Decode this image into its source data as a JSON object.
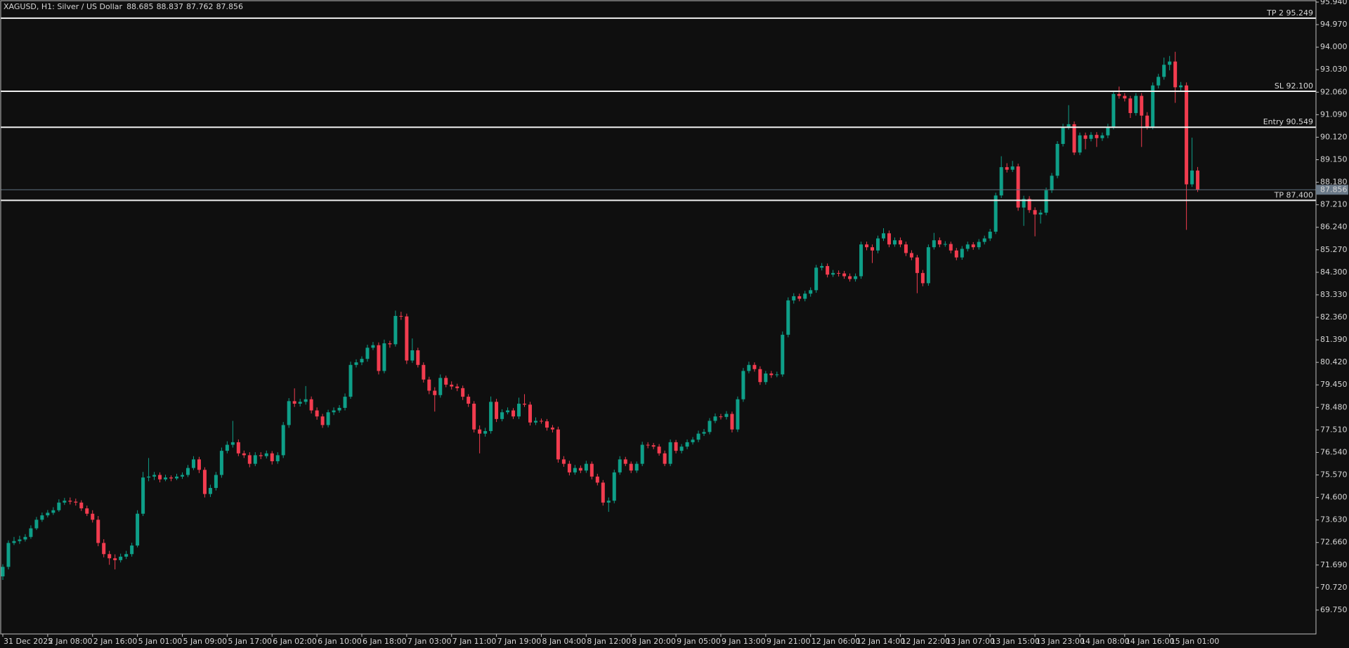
{
  "chart_data": {
    "type": "candlestick",
    "title": "XAGUSD, H1:  Silver / US Dollar",
    "up_color": "#0e9f88",
    "down_color": "#f23c4f",
    "grid": false,
    "ylim": [
      68.72,
      95.94
    ],
    "yticks": [
      {
        "value": 69.75,
        "label": "69.750"
      },
      {
        "value": 70.72,
        "label": "70.720"
      },
      {
        "value": 71.69,
        "label": "71.690"
      },
      {
        "value": 72.66,
        "label": "72.660"
      },
      {
        "value": 73.63,
        "label": "73.630"
      },
      {
        "value": 74.6,
        "label": "74.600"
      },
      {
        "value": 75.57,
        "label": "75.570"
      },
      {
        "value": 76.54,
        "label": "76.540"
      },
      {
        "value": 77.51,
        "label": "77.510"
      },
      {
        "value": 78.48,
        "label": "78.480"
      },
      {
        "value": 79.45,
        "label": "79.450"
      },
      {
        "value": 80.42,
        "label": "80.420"
      },
      {
        "value": 81.39,
        "label": "81.390"
      },
      {
        "value": 82.36,
        "label": "82.360"
      },
      {
        "value": 83.33,
        "label": "83.330"
      },
      {
        "value": 84.3,
        "label": "84.300"
      },
      {
        "value": 85.27,
        "label": "85.270"
      },
      {
        "value": 86.24,
        "label": "86.240"
      },
      {
        "value": 87.21,
        "label": "87.210"
      },
      {
        "value": 88.18,
        "label": "88.180"
      },
      {
        "value": 89.15,
        "label": "89.150"
      },
      {
        "value": 90.12,
        "label": "90.120"
      },
      {
        "value": 91.09,
        "label": "91.090"
      },
      {
        "value": 92.06,
        "label": "92.060"
      },
      {
        "value": 93.03,
        "label": "93.030"
      },
      {
        "value": 94,
        "label": "94.000"
      },
      {
        "value": 94.97,
        "label": "94.970"
      },
      {
        "value": 95.94,
        "label": "95.940"
      }
    ],
    "levels": [
      {
        "value": 95.249,
        "label": "TP 2 95.249"
      },
      {
        "value": 92.1,
        "label": "SL 92.100"
      },
      {
        "value": 90.549,
        "label": "Entry 90.549"
      },
      {
        "value": 87.4,
        "label": "TP 87.400"
      }
    ],
    "categories": [
      "31 Dec 2025",
      null,
      null,
      null,
      null,
      null,
      null,
      null,
      "2 Jan 08:00",
      null,
      null,
      null,
      null,
      null,
      null,
      null,
      "2 Jan 16:00",
      null,
      null,
      null,
      null,
      null,
      null,
      null,
      "5 Jan 01:00",
      null,
      null,
      null,
      null,
      null,
      null,
      null,
      "5 Jan 09:00",
      null,
      null,
      null,
      null,
      null,
      null,
      null,
      "5 Jan 17:00",
      null,
      null,
      null,
      null,
      null,
      null,
      null,
      "6 Jan 02:00",
      null,
      null,
      null,
      null,
      null,
      null,
      null,
      "6 Jan 10:00",
      null,
      null,
      null,
      null,
      null,
      null,
      null,
      "6 Jan 18:00",
      null,
      null,
      null,
      null,
      null,
      null,
      null,
      "7 Jan 03:00",
      null,
      null,
      null,
      null,
      null,
      null,
      null,
      "7 Jan 11:00",
      null,
      null,
      null,
      null,
      null,
      null,
      null,
      "7 Jan 19:00",
      null,
      null,
      null,
      null,
      null,
      null,
      null,
      "8 Jan 04:00",
      null,
      null,
      null,
      null,
      null,
      null,
      null,
      "8 Jan 12:00",
      null,
      null,
      null,
      null,
      null,
      null,
      null,
      "8 Jan 20:00",
      null,
      null,
      null,
      null,
      null,
      null,
      null,
      "9 Jan 05:00",
      null,
      null,
      null,
      null,
      null,
      null,
      null,
      "9 Jan 13:00",
      null,
      null,
      null,
      null,
      null,
      null,
      null,
      "9 Jan 21:00",
      null,
      null,
      null,
      null,
      null,
      null,
      null,
      "12 Jan 06:00",
      null,
      null,
      null,
      null,
      null,
      null,
      null,
      "12 Jan 14:00",
      null,
      null,
      null,
      null,
      null,
      null,
      null,
      "12 Jan 22:00",
      null,
      null,
      null,
      null,
      null,
      null,
      null,
      "13 Jan 07:00",
      null,
      null,
      null,
      null,
      null,
      null,
      null,
      "13 Jan 15:00",
      null,
      null,
      null,
      null,
      null,
      null,
      null,
      "13 Jan 23:00",
      null,
      null,
      null,
      null,
      null,
      null,
      null,
      "14 Jan 08:00",
      null,
      null,
      null,
      null,
      null,
      null,
      null,
      "14 Jan 16:00",
      null,
      null,
      null,
      null,
      null,
      null,
      null,
      "15 Jan 01:00",
      null,
      null,
      null,
      null,
      null
    ],
    "open": [
      71.2,
      71.61,
      72.64,
      72.72,
      72.79,
      72.9,
      73.27,
      73.64,
      73.83,
      73.94,
      74.05,
      74.38,
      74.46,
      74.42,
      74.38,
      74.13,
      73.9,
      73.64,
      72.64,
      72.16,
      71.98,
      71.9,
      72.05,
      72.16,
      72.53,
      73.9,
      75.46,
      75.5,
      75.57,
      75.38,
      75.46,
      75.42,
      75.5,
      75.57,
      75.87,
      76.24,
      75.79,
      74.75,
      75.01,
      75.57,
      76.61,
      76.87,
      76.98,
      76.5,
      76.42,
      76.05,
      76.42,
      76.38,
      76.5,
      76.16,
      76.42,
      77.72,
      78.75,
      78.64,
      78.72,
      78.83,
      78.35,
      78.09,
      77.72,
      78.27,
      78.35,
      78.46,
      78.94,
      80.31,
      80.42,
      80.57,
      81.05,
      81.16,
      80.05,
      81.24,
      81.2,
      82.42,
      82.4,
      80.5,
      80.94,
      80.31,
      79.68,
      79.2,
      79.01,
      79.75,
      79.46,
      79.38,
      79.31,
      78.94,
      78.64,
      77.53,
      77.35,
      77.46,
      78.72,
      77.98,
      78.27,
      78.35,
      78.09,
      78.64,
      78.6,
      77.83,
      77.9,
      77.88,
      77.61,
      77.53,
      76.24,
      76.05,
      75.68,
      75.87,
      75.76,
      76.05,
      75.5,
      75.24,
      74.38,
      74.46,
      75.68,
      76.24,
      76.05,
      75.76,
      76.05,
      76.87,
      76.85,
      76.79,
      76.5,
      76.05,
      76.98,
      76.61,
      76.79,
      76.98,
      77.09,
      77.35,
      77.42,
      77.9,
      78.09,
      78.07,
      78.2,
      77.53,
      78.83,
      80.05,
      80.31,
      80.13,
      79.57,
      79.94,
      79.87,
      79.9,
      81.61,
      83.09,
      83.27,
      83.16,
      83.38,
      83.53,
      84.5,
      84.57,
      84.2,
      84.27,
      84.25,
      84.13,
      84.01,
      84.13,
      85.5,
      85.38,
      85.24,
      85.76,
      85.98,
      85.5,
      85.68,
      85.5,
      85.13,
      84.94,
      84.27,
      83.83,
      85.38,
      85.68,
      85.5,
      85.52,
      85.24,
      84.94,
      85.31,
      85.5,
      85.38,
      85.61,
      85.76,
      86.05,
      87.61,
      88.83,
      88.72,
      88.86,
      87.09,
      87.46,
      86.98,
      86.79,
      86.87,
      87.83,
      88.46,
      89.83,
      90.57,
      90.68,
      89.46,
      90.2,
      90.05,
      90.22,
      90.08,
      90.2,
      90.57,
      91.98,
      91.9,
      91.79,
      91.16,
      91.9,
      91.05,
      90.57,
      92.35,
      92.72,
      93.24,
      93.38,
      92.27,
      92.35,
      88.09,
      88.685
    ],
    "high": [
      71.72,
      72.75,
      72.9,
      72.95,
      73.02,
      73.4,
      73.76,
      73.95,
      74.06,
      74.18,
      74.52,
      74.58,
      74.6,
      74.55,
      74.48,
      74.25,
      74.05,
      73.8,
      72.8,
      72.3,
      72.15,
      72.18,
      72.3,
      72.65,
      74.05,
      75.7,
      76.3,
      75.7,
      75.68,
      75.58,
      75.55,
      75.62,
      75.68,
      76.0,
      76.38,
      76.35,
      75.9,
      75.15,
      75.7,
      76.75,
      77.02,
      77.9,
      77.1,
      76.62,
      76.55,
      76.55,
      76.55,
      76.62,
      76.6,
      76.55,
      77.85,
      78.88,
      79.3,
      78.85,
      79.4,
      78.95,
      78.48,
      78.2,
      78.38,
      78.48,
      78.58,
      79.08,
      80.45,
      80.55,
      80.68,
      81.18,
      81.3,
      81.28,
      81.4,
      81.35,
      82.65,
      82.6,
      82.52,
      81.45,
      81.05,
      80.42,
      79.8,
      79.35,
      79.9,
      79.85,
      79.6,
      79.5,
      79.42,
      79.05,
      78.75,
      77.7,
      77.6,
      78.95,
      78.85,
      78.4,
      78.48,
      78.45,
      78.9,
      79.05,
      78.72,
      78.05,
      78.0,
      77.98,
      77.72,
      77.65,
      76.38,
      76.18,
      76.0,
      75.98,
      76.18,
      76.15,
      75.62,
      75.35,
      74.6,
      75.8,
      76.38,
      76.35,
      76.15,
      76.15,
      77.0,
      76.98,
      76.95,
      76.9,
      76.62,
      77.1,
      77.08,
      76.9,
      77.1,
      77.2,
      77.48,
      77.55,
      78.02,
      78.22,
      78.2,
      78.32,
      78.3,
      78.95,
      80.18,
      80.45,
      80.42,
      80.25,
      80.05,
      80.05,
      80.02,
      81.75,
      83.22,
      83.4,
      83.38,
      83.5,
      83.65,
      84.62,
      84.7,
      84.68,
      84.4,
      84.38,
      84.36,
      84.25,
      84.25,
      85.62,
      85.62,
      85.5,
      85.88,
      86.2,
      86.1,
      85.8,
      85.8,
      85.62,
      85.25,
      85.05,
      84.4,
      85.5,
      86.0,
      85.8,
      85.64,
      85.62,
      85.35,
      85.43,
      85.62,
      85.6,
      85.73,
      85.88,
      86.17,
      87.73,
      89.3,
      89.0,
      89.1,
      88.98,
      87.6,
      87.58,
      87.1,
      86.99,
      87.95,
      88.58,
      89.95,
      90.7,
      91.5,
      90.8,
      90.32,
      90.32,
      90.34,
      90.34,
      90.32,
      90.7,
      92.1,
      92.3,
      92.02,
      91.9,
      92.02,
      92.02,
      91.2,
      92.48,
      92.85,
      93.55,
      93.62,
      93.8,
      92.5,
      92.48,
      90.1,
      88.837
    ],
    "low": [
      71.05,
      71.5,
      72.55,
      72.6,
      72.7,
      72.82,
      73.2,
      73.55,
      73.74,
      73.85,
      73.98,
      74.28,
      74.3,
      74.25,
      74.02,
      73.8,
      73.52,
      72.5,
      72.02,
      71.7,
      71.5,
      71.8,
      71.95,
      72.05,
      72.45,
      73.8,
      75.3,
      75.35,
      75.25,
      75.3,
      75.3,
      75.35,
      75.4,
      75.48,
      75.78,
      75.65,
      74.6,
      74.62,
      74.9,
      75.45,
      76.5,
      76.75,
      76.38,
      76.3,
      75.9,
      75.95,
      76.25,
      76.28,
      76.02,
      76.05,
      76.3,
      77.6,
      78.5,
      78.52,
      78.6,
      78.22,
      77.95,
      77.6,
      77.62,
      78.15,
      78.25,
      78.35,
      78.85,
      80.2,
      80.3,
      80.45,
      80.95,
      79.9,
      79.95,
      81.05,
      81.1,
      82.25,
      80.35,
      80.4,
      80.2,
      79.55,
      79.05,
      78.3,
      78.9,
      79.35,
      79.25,
      79.18,
      78.8,
      78.5,
      77.4,
      76.5,
      77.22,
      77.35,
      77.85,
      77.88,
      78.18,
      77.98,
      77.98,
      78.5,
      77.7,
      77.72,
      77.78,
      77.48,
      77.4,
      76.1,
      75.92,
      75.55,
      75.58,
      75.65,
      75.66,
      75.38,
      75.12,
      74.25,
      73.98,
      74.35,
      75.58,
      75.95,
      75.65,
      75.66,
      75.95,
      76.72,
      76.68,
      76.4,
      75.95,
      75.95,
      76.5,
      76.5,
      76.68,
      76.88,
      76.98,
      77.25,
      77.32,
      77.8,
      77.96,
      77.96,
      77.4,
      77.42,
      78.72,
      79.95,
      80.02,
      79.45,
      79.46,
      79.75,
      79.78,
      79.8,
      81.5,
      82.95,
      83.05,
      83.05,
      83.25,
      83.42,
      84.38,
      84.08,
      84.1,
      84.12,
      84.02,
      83.9,
      83.9,
      84.02,
      85.25,
      84.7,
      85.12,
      85.65,
      85.38,
      85.4,
      85.38,
      85.0,
      84.82,
      83.4,
      83.7,
      83.72,
      85.28,
      85.38,
      85.4,
      85.12,
      84.82,
      84.84,
      85.2,
      85.27,
      85.28,
      85.5,
      85.65,
      85.95,
      87.5,
      88.6,
      88.62,
      86.95,
      86.3,
      86.86,
      85.85,
      86.4,
      86.76,
      87.72,
      88.35,
      89.72,
      90.45,
      89.35,
      89.35,
      89.6,
      89.94,
      89.7,
      89.96,
      90.08,
      90.46,
      91.78,
      91.66,
      90.95,
      91.05,
      89.7,
      90.45,
      90.46,
      92.22,
      92.6,
      93.0,
      91.6,
      92.1,
      86.13,
      87.98,
      87.762
    ],
    "close": [
      71.61,
      72.64,
      72.72,
      72.79,
      72.9,
      73.27,
      73.64,
      73.83,
      73.94,
      74.05,
      74.38,
      74.46,
      74.42,
      74.38,
      74.13,
      73.9,
      73.64,
      72.64,
      72.16,
      71.98,
      71.9,
      72.05,
      72.16,
      72.53,
      73.9,
      75.46,
      75.5,
      75.57,
      75.38,
      75.46,
      75.42,
      75.5,
      75.57,
      75.87,
      76.24,
      75.79,
      74.75,
      75.01,
      75.57,
      76.61,
      76.87,
      76.98,
      76.5,
      76.42,
      76.05,
      76.42,
      76.38,
      76.5,
      76.16,
      76.42,
      77.72,
      78.75,
      78.64,
      78.72,
      78.83,
      78.35,
      78.09,
      77.72,
      78.27,
      78.35,
      78.46,
      78.94,
      80.31,
      80.42,
      80.57,
      81.05,
      81.16,
      80.05,
      81.24,
      81.2,
      82.42,
      82.4,
      80.5,
      80.94,
      80.31,
      79.68,
      79.2,
      79.01,
      79.75,
      79.46,
      79.38,
      79.31,
      78.94,
      78.64,
      77.53,
      77.35,
      77.46,
      78.72,
      77.98,
      78.27,
      78.35,
      78.09,
      78.64,
      78.6,
      77.83,
      77.9,
      77.88,
      77.61,
      77.53,
      76.24,
      76.05,
      75.68,
      75.87,
      75.76,
      76.05,
      75.5,
      75.24,
      74.38,
      74.46,
      75.68,
      76.24,
      76.05,
      75.76,
      76.05,
      76.87,
      76.85,
      76.79,
      76.5,
      76.05,
      76.98,
      76.61,
      76.79,
      76.98,
      77.09,
      77.35,
      77.42,
      77.9,
      78.09,
      78.07,
      78.2,
      77.53,
      78.83,
      80.05,
      80.31,
      80.13,
      79.57,
      79.94,
      79.87,
      79.9,
      81.61,
      83.09,
      83.27,
      83.16,
      83.38,
      83.53,
      84.5,
      84.57,
      84.2,
      84.27,
      84.25,
      84.13,
      84.01,
      84.13,
      85.5,
      85.38,
      85.24,
      85.76,
      85.98,
      85.5,
      85.68,
      85.5,
      85.13,
      84.94,
      84.27,
      83.83,
      85.38,
      85.68,
      85.5,
      85.52,
      85.24,
      84.94,
      85.31,
      85.5,
      85.38,
      85.61,
      85.76,
      86.05,
      87.61,
      88.83,
      88.72,
      88.86,
      87.09,
      87.46,
      86.98,
      86.79,
      86.87,
      87.83,
      88.46,
      89.83,
      90.57,
      90.68,
      89.46,
      90.2,
      90.05,
      90.22,
      90.08,
      90.2,
      90.57,
      91.98,
      91.9,
      91.79,
      91.16,
      91.9,
      91.05,
      90.57,
      92.35,
      92.72,
      93.24,
      93.38,
      92.27,
      92.35,
      88.09,
      88.685,
      87.856
    ]
  }
}
